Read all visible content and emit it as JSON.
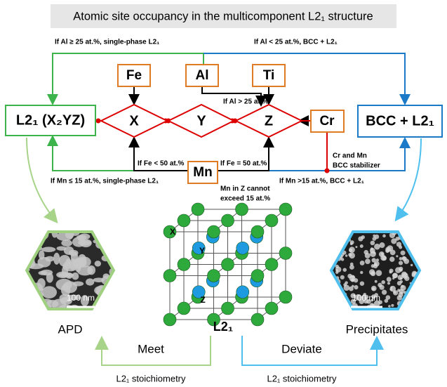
{
  "title": "Atomic site occupancy in the multicomponent L2₁ structure",
  "flow": {
    "top_left_condition": "If Al ≥ 25 at.%, single-phase L2₁",
    "top_right_condition": "If Al < 25 at.%, BCC + L2₁",
    "elements": [
      "Fe",
      "Al",
      "Ti",
      "Cr",
      "Mn"
    ],
    "sites": [
      "X",
      "Y",
      "Z"
    ],
    "left_box": "L2₁ (X₂YZ)",
    "right_box": "BCC + L2₁",
    "al_to_z": "If Al > 25 at.%",
    "fe_to_x": "If Fe < 50 at.%",
    "fe_to_z": "If Fe = 50 at.%",
    "mn_note": [
      "Mn in Z cannot",
      "exceed 15 at.%"
    ],
    "cr_note": [
      "Cr and Mn",
      "BCC stabilizer"
    ],
    "bottom_left_condition": "If Mn ≤ 15 at.%, single-phase L2₁",
    "bottom_right_condition": "If Mn >15 at.%, BCC + L2₁"
  },
  "lattice": {
    "label": "L2₁",
    "sites": [
      "X",
      "Y",
      "Z"
    ]
  },
  "images": [
    {
      "scale": "100 nm",
      "caption": "APD"
    },
    {
      "scale": "100 nm",
      "caption": "Precipitates"
    }
  ],
  "arrows": [
    {
      "label": "Meet",
      "note": "L2₁ stoichiometry"
    },
    {
      "label": "Deviate",
      "note": "L2₁ stoichiometry"
    }
  ]
}
